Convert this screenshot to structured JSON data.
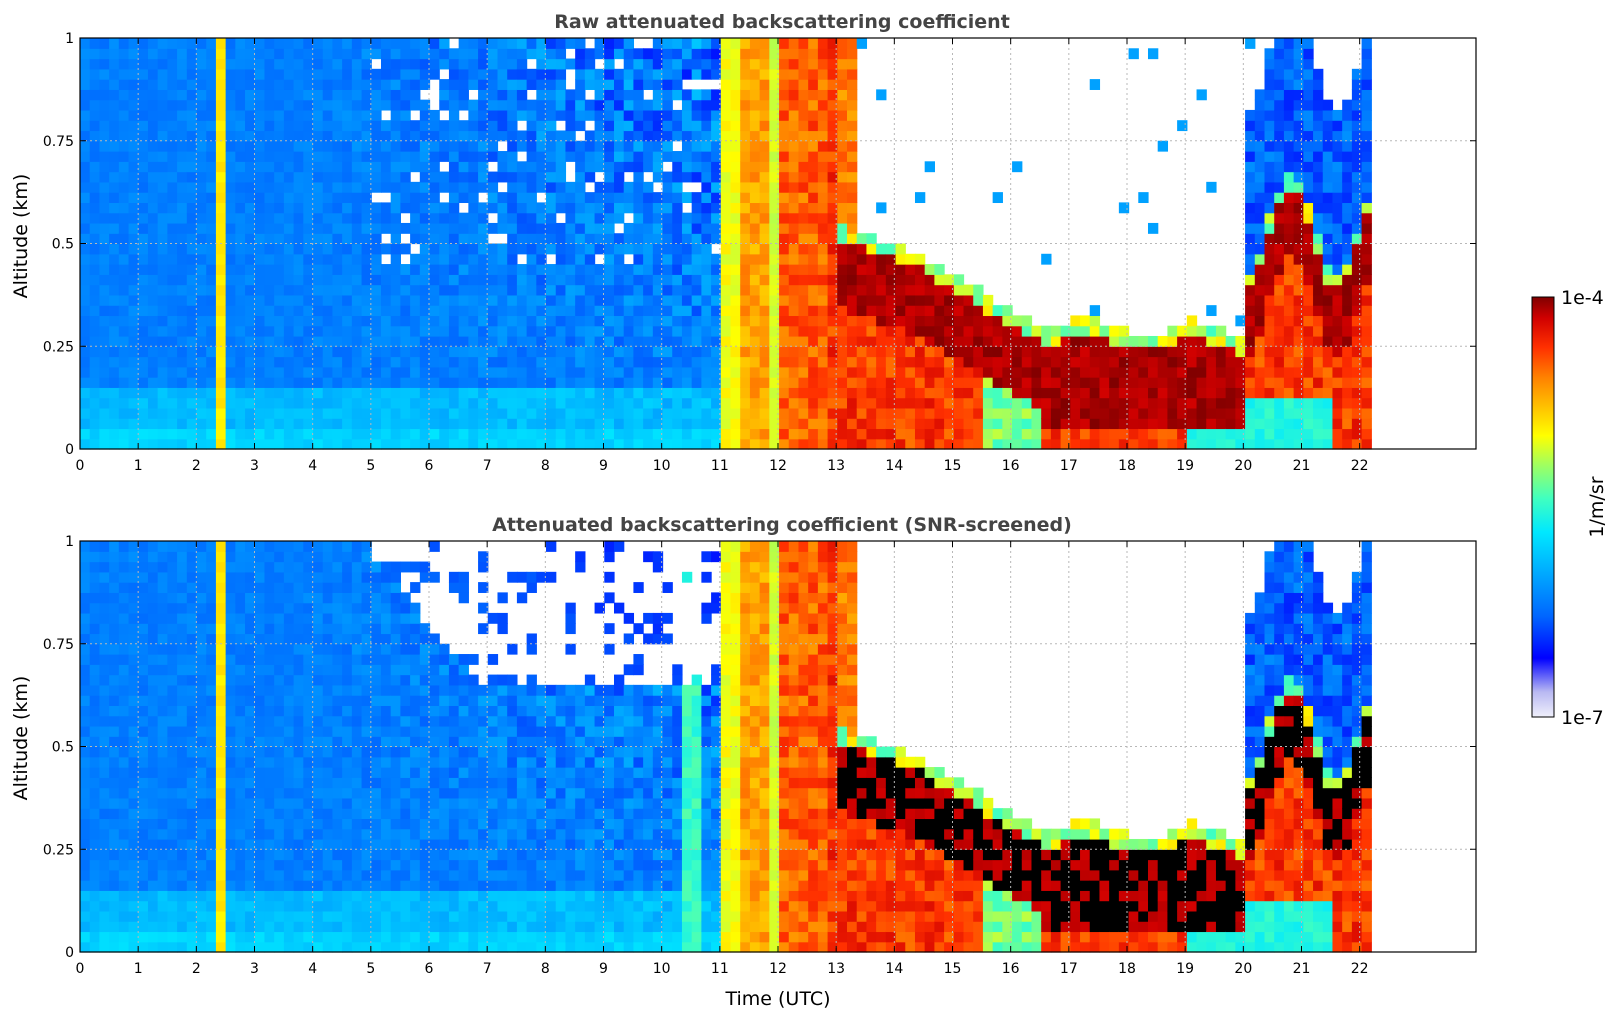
{
  "chart_data": [
    {
      "type": "heatmap",
      "title": "Raw attenuated backscattering coefficient",
      "xlabel": "",
      "ylabel": "Altitude (km)",
      "xlim": [
        0,
        24
      ],
      "ylim": [
        0,
        1
      ],
      "data_end_x": 22.2,
      "x_ticks": [
        "0",
        "1",
        "2",
        "3",
        "4",
        "5",
        "6",
        "7",
        "8",
        "9",
        "10",
        "11",
        "12",
        "13",
        "14",
        "15",
        "16",
        "17",
        "18",
        "19",
        "20",
        "21",
        "22"
      ],
      "y_ticks": [
        "0",
        "0.25",
        "0.5",
        "0.75",
        "1"
      ],
      "grid": true,
      "screened": false
    },
    {
      "type": "heatmap",
      "title": "Attenuated backscattering coefficient (SNR-screened)",
      "xlabel": "Time (UTC)",
      "ylabel": "Altitude (km)",
      "xlim": [
        0,
        24
      ],
      "ylim": [
        0,
        1
      ],
      "data_end_x": 22.2,
      "x_ticks": [
        "0",
        "1",
        "2",
        "3",
        "4",
        "5",
        "6",
        "7",
        "8",
        "9",
        "10",
        "11",
        "12",
        "13",
        "14",
        "15",
        "16",
        "17",
        "18",
        "19",
        "20",
        "21",
        "22"
      ],
      "y_ticks": [
        "0",
        "0.25",
        "0.5",
        "0.75",
        "1"
      ],
      "grid": true,
      "screened": true
    }
  ],
  "colorbar": {
    "label": "1/m/sr",
    "max_label": "1e-4",
    "min_label": "1e-7",
    "scale": "log",
    "colormap": [
      "#f0f0fb",
      "#b8b8f2",
      "#0000ff",
      "#0066ff",
      "#00a8ff",
      "#00e8ff",
      "#40ffc0",
      "#a0ff60",
      "#ffff00",
      "#ffc000",
      "#ff8000",
      "#ff3000",
      "#d00000",
      "#800000"
    ]
  },
  "colors": {
    "axis": "#000000",
    "title": "#444444",
    "grid": "#b8b8b8",
    "background": "#ffffff"
  }
}
